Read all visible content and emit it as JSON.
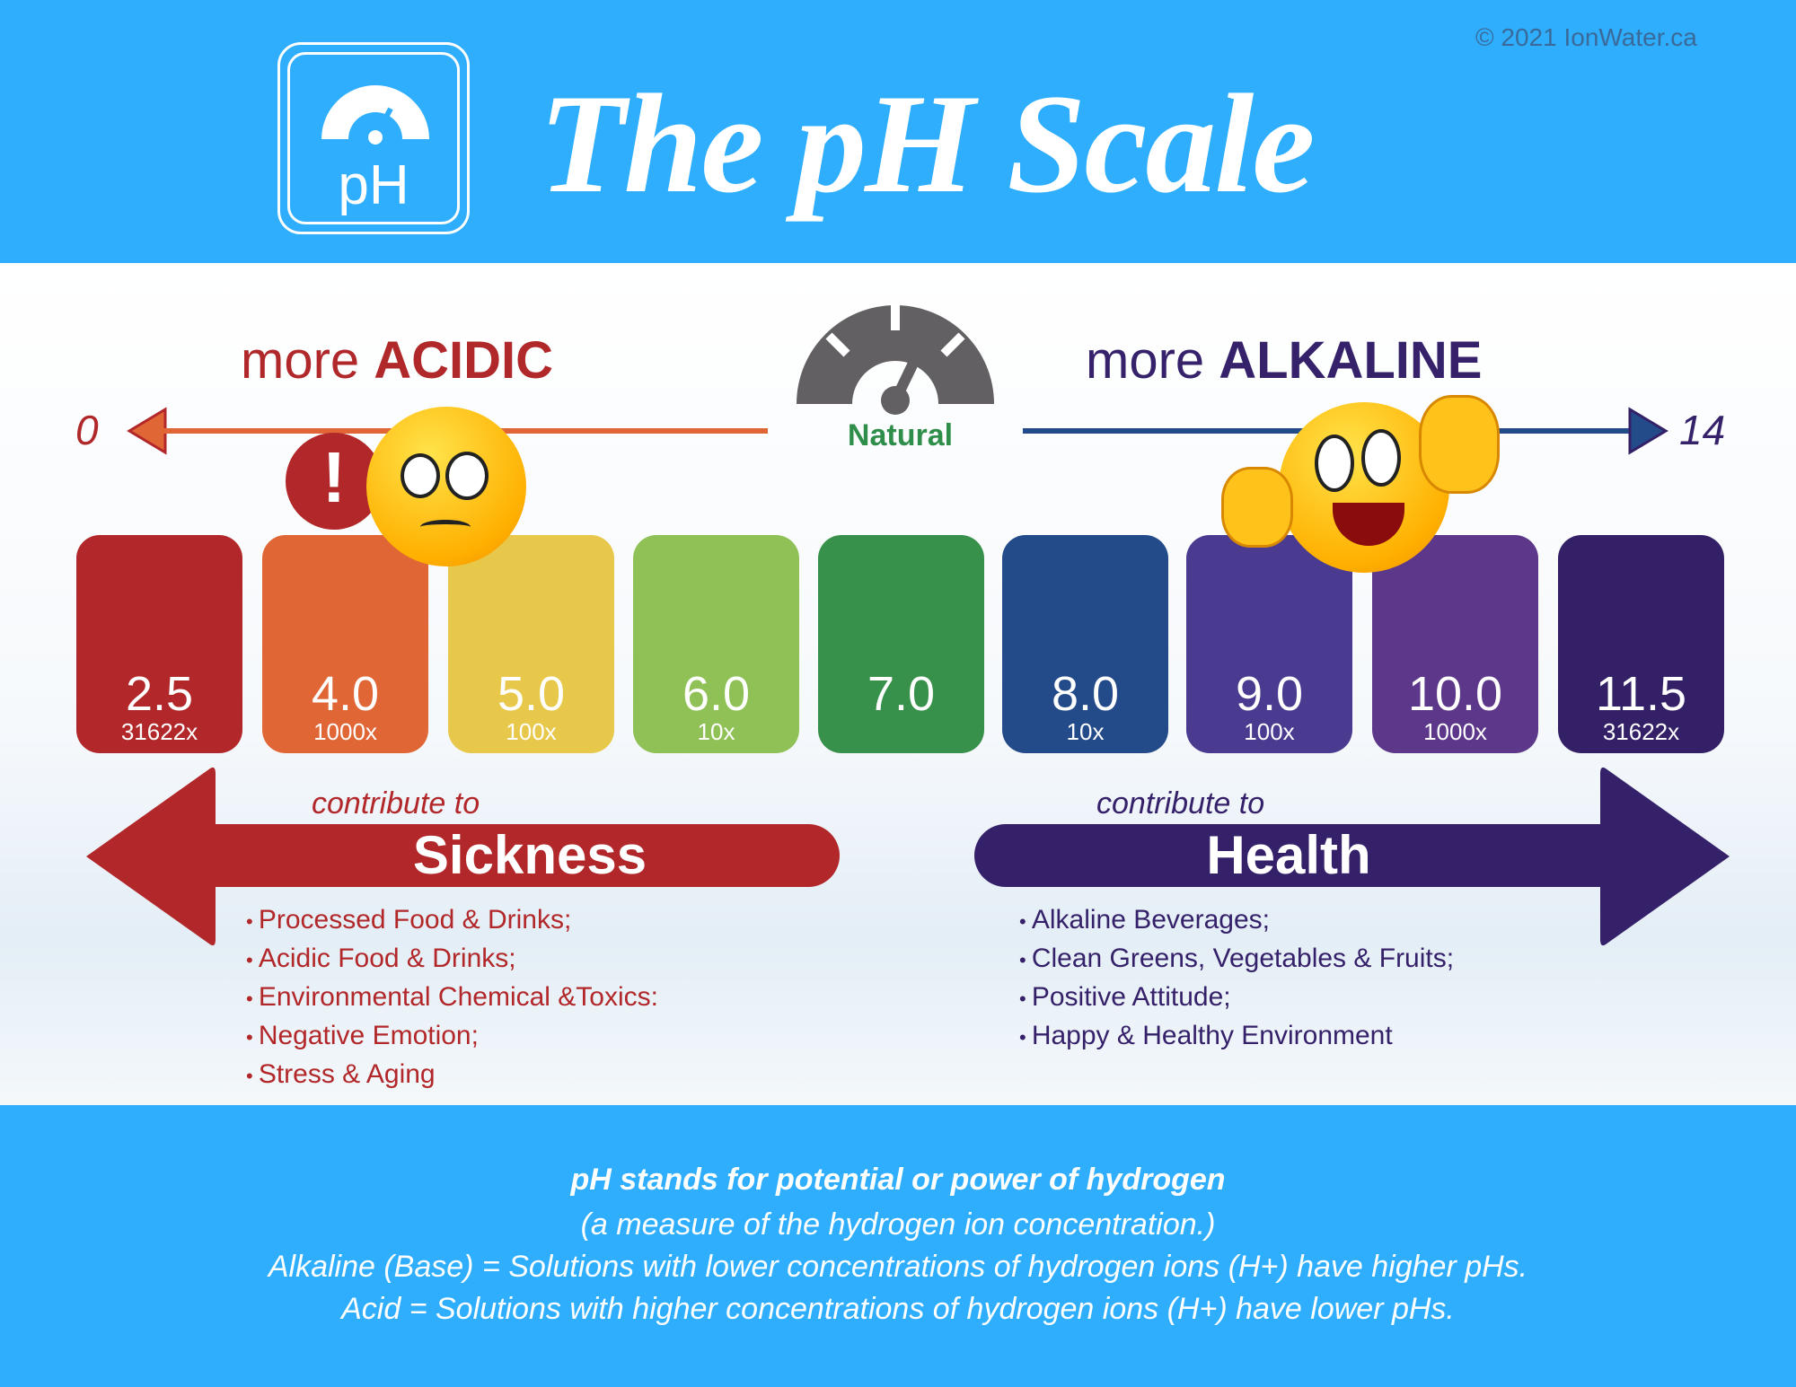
{
  "header": {
    "title": "The pH Scale",
    "logo_text": "pH",
    "copyright": "© 2021 IonWater.ca"
  },
  "scale": {
    "acidic_prefix": "more",
    "acidic_word": "ACIDIC",
    "alkaline_prefix": "more",
    "alkaline_word": "ALKALINE",
    "natural": "Natural",
    "min": "0",
    "max": "14"
  },
  "bars": [
    {
      "value": "2.5",
      "multiplier": "31622x",
      "color": "#b22729"
    },
    {
      "value": "4.0",
      "multiplier": "1000x",
      "color": "#e16636"
    },
    {
      "value": "5.0",
      "multiplier": "100x",
      "color": "#e8c84a"
    },
    {
      "value": "6.0",
      "multiplier": "10x",
      "color": "#8fc157"
    },
    {
      "value": "7.0",
      "multiplier": "",
      "color": "#38914b"
    },
    {
      "value": "8.0",
      "multiplier": "10x",
      "color": "#234b8a"
    },
    {
      "value": "9.0",
      "multiplier": "100x",
      "color": "#4a3b91"
    },
    {
      "value": "10.0",
      "multiplier": "1000x",
      "color": "#5c378a"
    },
    {
      "value": "11.5",
      "multiplier": "31622x",
      "color": "#342066"
    }
  ],
  "sickness": {
    "contribute": "contribute to",
    "label": "Sickness",
    "color": "#b22729",
    "items": [
      "Processed Food & Drinks;",
      "Acidic Food & Drinks;",
      "Environmental Chemical &Toxics:",
      "Negative Emotion;",
      "Stress & Aging"
    ]
  },
  "health": {
    "contribute": "contribute to",
    "label": "Health",
    "color": "#35206a",
    "items": [
      "Alkaline Beverages;",
      "Clean Greens, Vegetables & Fruits;",
      "Positive Attitude;",
      "Happy & Healthy Environment"
    ]
  },
  "footer": {
    "line1": "pH stands for potential or power of hydrogen",
    "line2": "(a measure of the hydrogen ion concentration.)",
    "line3": "Alkaline (Base) = Solutions with lower concentrations of hydrogen ions (H+) have higher pHs.",
    "line4": "Acid = Solutions with higher concentrations of hydrogen ions (H+) have lower pHs."
  }
}
